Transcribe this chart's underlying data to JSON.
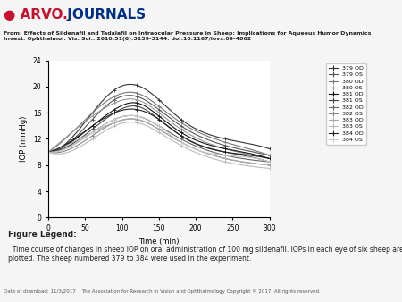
{
  "header_text": "From: Effects of Sildenafil and Tadalafil on Intraocular Pressure in Sheep: Implications for Aqueous Humor Dynamics\nInvest. Ophthalmol. Vis. Sci.. 2010;51(6):3139-3144. doi:10.1167/iovs.09-4862",
  "footer_text": "The Association for Research in Vision and Ophthalmology Copyright © 2017. All rights reserved.",
  "footer_left": "Date of download: 11/3/2017",
  "figure_legend_title": "Figure Legend:",
  "figure_legend_text": "  Time course of changes in sheep IOP on oral administration of 100 mg sildenafil. IOPs in each eye of six sheep are\nplotted. The sheep numbered 379 to 384 were used in the experiment.",
  "xlabel": "Time (min)",
  "ylabel": "IOP (mmHg)",
  "xlim": [
    0,
    300
  ],
  "ylim": [
    0,
    24
  ],
  "xticks": [
    0,
    50,
    100,
    150,
    200,
    250,
    300
  ],
  "yticks": [
    0,
    4,
    8,
    12,
    16,
    20,
    24
  ],
  "time_points": [
    0,
    60,
    90,
    120,
    150,
    180,
    240,
    300
  ],
  "series": {
    "379 OD": {
      "values": [
        10,
        16,
        19.5,
        20.2,
        18,
        15,
        12,
        10.5
      ],
      "color": "#333333",
      "marker": "+",
      "ls": "-"
    },
    "379 OS": {
      "values": [
        10,
        15,
        18,
        18.5,
        16.5,
        14,
        11,
        9.5
      ],
      "color": "#555555",
      "marker": "+",
      "ls": "-"
    },
    "380 OD": {
      "values": [
        10,
        16,
        18.5,
        19,
        17,
        14.5,
        11.5,
        9.5
      ],
      "color": "#777777",
      "marker": "s",
      "ls": "-"
    },
    "380 OS": {
      "values": [
        10,
        15.5,
        17.5,
        18,
        16,
        13.5,
        10.5,
        9
      ],
      "color": "#999999",
      "marker": "+",
      "ls": "-"
    },
    "381 OD": {
      "values": [
        10,
        14,
        16.5,
        17.5,
        15.5,
        13,
        10.5,
        9
      ],
      "color": "#111111",
      "marker": "+",
      "ls": "-"
    },
    "381 OS": {
      "values": [
        10,
        13.5,
        16,
        17,
        15,
        12.5,
        10,
        8.5
      ],
      "color": "#444444",
      "marker": "+",
      "ls": "-"
    },
    "382 OD": {
      "values": [
        10,
        13,
        15,
        15.5,
        14,
        12,
        9.5,
        8.5
      ],
      "color": "#666666",
      "marker": "+",
      "ls": "-"
    },
    "382 OS": {
      "values": [
        10,
        12.5,
        14.5,
        15,
        13.5,
        11.5,
        9,
        8
      ],
      "color": "#888888",
      "marker": "+",
      "ls": "-"
    },
    "383 OD": {
      "values": [
        10,
        13,
        14.5,
        15,
        13.5,
        11.5,
        9,
        8
      ],
      "color": "#aaaaaa",
      "marker": "+",
      "ls": "-"
    },
    "383 OS": {
      "values": [
        10,
        12,
        14,
        14.5,
        13,
        11,
        8.5,
        7.5
      ],
      "color": "#bbbbbb",
      "marker": "+",
      "ls": "-"
    },
    "384 OD": {
      "values": [
        10,
        14,
        16,
        16.5,
        15,
        12.5,
        10,
        9
      ],
      "color": "#222222",
      "marker": "+",
      "ls": "-"
    },
    "384 OS": {
      "values": [
        10,
        13,
        15,
        15.5,
        14,
        11.5,
        9.5,
        8.5
      ],
      "color": "#cccccc",
      "marker": "+",
      "ls": "-"
    }
  },
  "bg_header": "#d9d9d9",
  "bg_footer": "#e8e8e8",
  "bg_main": "#f5f5f5",
  "arvo_color": "#c8102e",
  "journals_color": "#003087"
}
